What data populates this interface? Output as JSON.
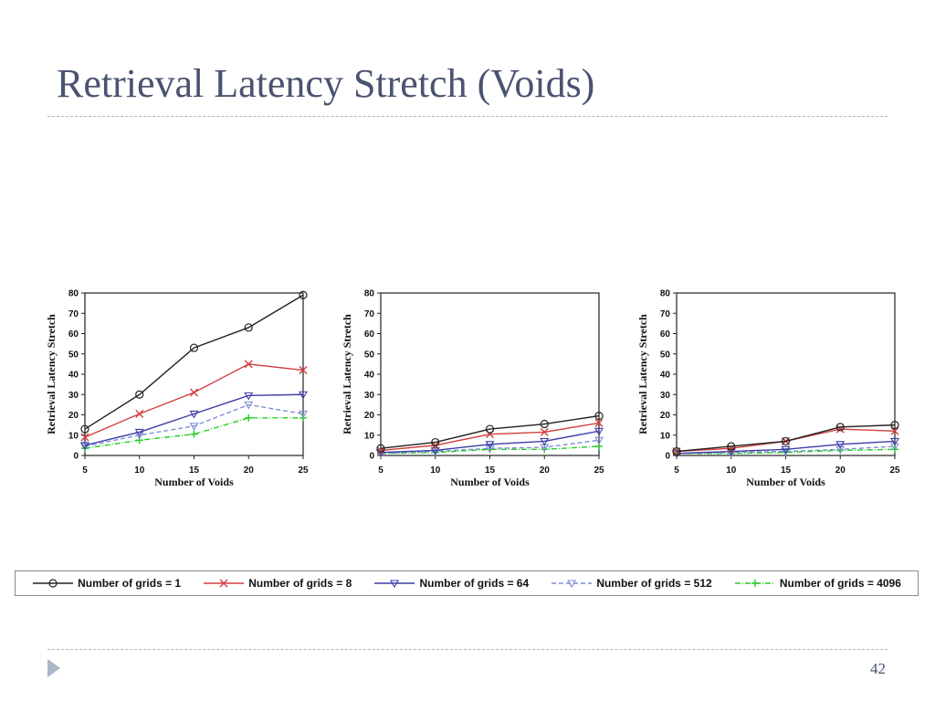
{
  "slide": {
    "title": "Retrieval Latency Stretch (Voids)",
    "page_number": "42"
  },
  "chart_data": [
    {
      "type": "line",
      "xlabel": "Number of Voids",
      "ylabel": "Retrieval Latency Stretch",
      "x": [
        5,
        10,
        15,
        20,
        25
      ],
      "xlim": [
        5,
        25
      ],
      "ylim": [
        0,
        80
      ],
      "yticks": [
        0,
        10,
        20,
        30,
        40,
        50,
        60,
        70,
        80
      ],
      "series": [
        {
          "name": "Number of grids = 1",
          "values": [
            13,
            30,
            53,
            63,
            79
          ]
        },
        {
          "name": "Number of grids = 8",
          "values": [
            9,
            20.5,
            31,
            45,
            42
          ]
        },
        {
          "name": "Number of grids = 64",
          "values": [
            5,
            11.5,
            20.5,
            29.5,
            30
          ]
        },
        {
          "name": "Number of grids = 512",
          "values": [
            4.5,
            10,
            14.5,
            25,
            20.5
          ]
        },
        {
          "name": "Number of grids = 4096",
          "values": [
            3.5,
            7.5,
            10.5,
            18.5,
            18.5
          ]
        }
      ]
    },
    {
      "type": "line",
      "xlabel": "Number of Voids",
      "ylabel": "Retrieval Latency Stretch",
      "x": [
        5,
        10,
        15,
        20,
        25
      ],
      "xlim": [
        5,
        25
      ],
      "ylim": [
        0,
        80
      ],
      "yticks": [
        0,
        10,
        20,
        30,
        40,
        50,
        60,
        70,
        80
      ],
      "series": [
        {
          "name": "Number of grids = 1",
          "values": [
            3.5,
            6.5,
            13,
            15.5,
            19.5
          ]
        },
        {
          "name": "Number of grids = 8",
          "values": [
            2.5,
            5,
            10.5,
            11.5,
            16
          ]
        },
        {
          "name": "Number of grids = 64",
          "values": [
            1.5,
            2.5,
            5.5,
            7,
            12
          ]
        },
        {
          "name": "Number of grids = 512",
          "values": [
            1,
            2,
            3.5,
            4,
            7.5
          ]
        },
        {
          "name": "Number of grids = 4096",
          "values": [
            1,
            1.5,
            3,
            3,
            4.5
          ]
        }
      ]
    },
    {
      "type": "line",
      "xlabel": "Number of Voids",
      "ylabel": "Retrieval Latency Stretch",
      "x": [
        5,
        10,
        15,
        20,
        25
      ],
      "xlim": [
        5,
        25
      ],
      "ylim": [
        0,
        80
      ],
      "yticks": [
        0,
        10,
        20,
        30,
        40,
        50,
        60,
        70,
        80
      ],
      "series": [
        {
          "name": "Number of grids = 1",
          "values": [
            2,
            4.5,
            7,
            14,
            15
          ]
        },
        {
          "name": "Number of grids = 8",
          "values": [
            2,
            3.5,
            7,
            13,
            12
          ]
        },
        {
          "name": "Number of grids = 64",
          "values": [
            1,
            2,
            3,
            5.5,
            7
          ]
        },
        {
          "name": "Number of grids = 512",
          "values": [
            1,
            1.5,
            2,
            3,
            4.5
          ]
        },
        {
          "name": "Number of grids = 4096",
          "values": [
            1,
            1,
            1.5,
            2.5,
            3
          ]
        }
      ]
    }
  ],
  "legend": [
    {
      "label": "Number of grids = 1",
      "color": "#222222",
      "marker": "circle",
      "dash": "solid"
    },
    {
      "label": "Number of grids = 8",
      "color": "#d04040",
      "marker": "x",
      "dash": "solid"
    },
    {
      "label": "Number of grids = 64",
      "color": "#3c3ca8",
      "marker": "triangle-down",
      "dash": "solid"
    },
    {
      "label": "Number of grids = 512",
      "color": "#7f8fd6",
      "marker": "triangle-down",
      "dash": "dashed"
    },
    {
      "label": "Number of grids = 4096",
      "color": "#22cc22",
      "marker": "plus",
      "dash": "dashdot"
    }
  ]
}
